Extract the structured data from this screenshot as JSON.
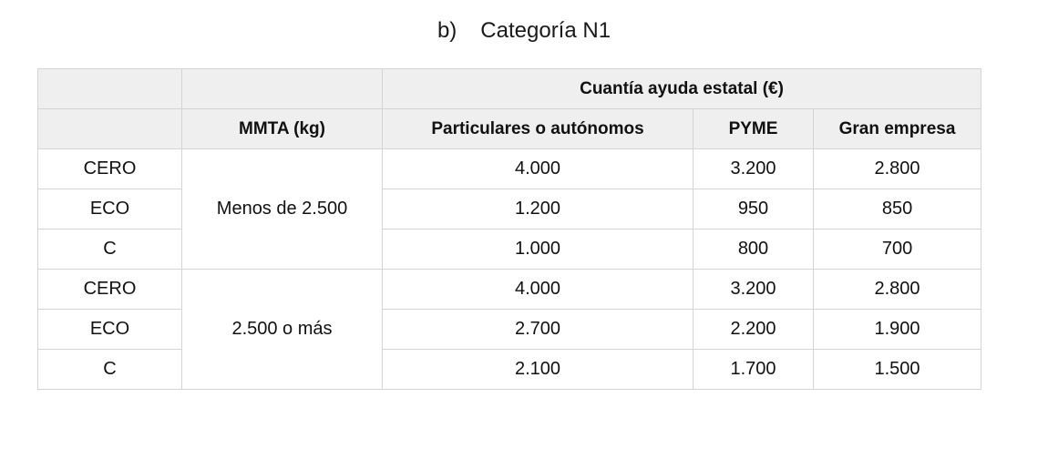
{
  "heading": {
    "marker": "b)",
    "title": "Categoría N1"
  },
  "table": {
    "group_header": "Cuantía ayuda estatal (€)",
    "columns": {
      "label": "",
      "mmta": "MMTA (kg)",
      "particulares": "Particulares o autónomos",
      "pyme": "PYME",
      "gran_empresa": "Gran empresa"
    },
    "groups": [
      {
        "mmta": "Menos de 2.500",
        "rows": [
          {
            "label": "CERO",
            "particulares": "4.000",
            "pyme": "3.200",
            "gran_empresa": "2.800"
          },
          {
            "label": "ECO",
            "particulares": "1.200",
            "pyme": "950",
            "gran_empresa": "850"
          },
          {
            "label": "C",
            "particulares": "1.000",
            "pyme": "800",
            "gran_empresa": "700"
          }
        ]
      },
      {
        "mmta": "2.500 o más",
        "rows": [
          {
            "label": "CERO",
            "particulares": "4.000",
            "pyme": "3.200",
            "gran_empresa": "2.800"
          },
          {
            "label": "ECO",
            "particulares": "2.700",
            "pyme": "2.200",
            "gran_empresa": "1.900"
          },
          {
            "label": "C",
            "particulares": "2.100",
            "pyme": "1.700",
            "gran_empresa": "1.500"
          }
        ]
      }
    ]
  }
}
